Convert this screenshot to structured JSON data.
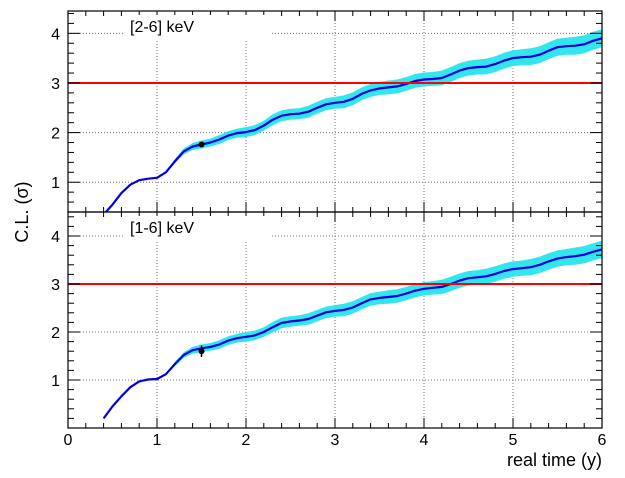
{
  "figure": {
    "ylabel": "C.L. (σ)",
    "xlabel": "real time (y)"
  },
  "chart_data": [
    {
      "type": "line",
      "panel": "top",
      "title": "[2-6] keV",
      "xlabel": "",
      "ylabel": "",
      "xlim": [
        0,
        6
      ],
      "ylim": [
        0.4,
        4.45
      ],
      "yticks": [
        1,
        2,
        3,
        4
      ],
      "ytick_labels": [
        "1",
        "2",
        "3",
        "4"
      ],
      "grid": true,
      "colors": {
        "line": "#0000dd",
        "band": "#33e6ee",
        "threshold": "#ff0000",
        "point": "#000000"
      },
      "series": [
        {
          "kind": "curve_with_band",
          "x": [
            0.4,
            0.5,
            0.6,
            0.7,
            0.8,
            0.9,
            1.0,
            1.1,
            1.2,
            1.3,
            1.4,
            1.5,
            1.6,
            1.7,
            1.8,
            1.9,
            2.0,
            2.1,
            2.2,
            2.3,
            2.4,
            2.5,
            2.6,
            2.7,
            2.8,
            2.9,
            3.0,
            3.1,
            3.2,
            3.3,
            3.4,
            3.5,
            3.6,
            3.7,
            3.8,
            3.9,
            4.0,
            4.1,
            4.2,
            4.3,
            4.4,
            4.5,
            4.6,
            4.7,
            4.8,
            4.9,
            5.0,
            5.1,
            5.2,
            5.3,
            5.4,
            5.5,
            5.6,
            5.7,
            5.8,
            5.9,
            6.0
          ],
          "y": [
            0.35,
            0.55,
            0.78,
            0.95,
            1.04,
            1.07,
            1.09,
            1.2,
            1.42,
            1.62,
            1.72,
            1.76,
            1.8,
            1.86,
            1.94,
            1.99,
            2.01,
            2.05,
            2.14,
            2.26,
            2.34,
            2.37,
            2.38,
            2.42,
            2.5,
            2.57,
            2.6,
            2.62,
            2.68,
            2.78,
            2.85,
            2.89,
            2.91,
            2.93,
            2.98,
            3.04,
            3.07,
            3.08,
            3.1,
            3.17,
            3.25,
            3.3,
            3.32,
            3.33,
            3.38,
            3.45,
            3.5,
            3.52,
            3.53,
            3.57,
            3.65,
            3.72,
            3.74,
            3.75,
            3.78,
            3.85,
            3.9
          ],
          "band_halfwidth": [
            0,
            0,
            0,
            0,
            0,
            0,
            0.01,
            0.02,
            0.04,
            0.06,
            0.07,
            0.08,
            0.08,
            0.09,
            0.09,
            0.09,
            0.1,
            0.1,
            0.1,
            0.11,
            0.11,
            0.11,
            0.11,
            0.12,
            0.12,
            0.12,
            0.12,
            0.13,
            0.13,
            0.13,
            0.13,
            0.13,
            0.14,
            0.14,
            0.14,
            0.14,
            0.14,
            0.14,
            0.15,
            0.15,
            0.15,
            0.15,
            0.15,
            0.16,
            0.16,
            0.16,
            0.16,
            0.16,
            0.17,
            0.17,
            0.17,
            0.17,
            0.17,
            0.18,
            0.18,
            0.18,
            0.18
          ]
        },
        {
          "kind": "threshold",
          "y": 3
        },
        {
          "kind": "point",
          "x": 1.5,
          "y": 1.76,
          "yerr": 0.03
        }
      ]
    },
    {
      "type": "line",
      "panel": "bottom",
      "title": "[1-6] keV",
      "xlabel": "real time (y)",
      "ylabel": "",
      "xlim": [
        0,
        6
      ],
      "ylim": [
        0.0,
        4.5
      ],
      "xticks": [
        0,
        1,
        2,
        3,
        4,
        5,
        6
      ],
      "xtick_labels": [
        "0",
        "1",
        "2",
        "3",
        "4",
        "5",
        "6"
      ],
      "yticks": [
        1,
        2,
        3,
        4
      ],
      "ytick_labels": [
        "1",
        "2",
        "3",
        "4"
      ],
      "grid": true,
      "colors": {
        "line": "#0000dd",
        "band": "#33e6ee",
        "threshold": "#ff0000",
        "point": "#000000"
      },
      "series": [
        {
          "kind": "curve_with_band",
          "x": [
            0.4,
            0.5,
            0.6,
            0.7,
            0.8,
            0.9,
            1.0,
            1.1,
            1.2,
            1.3,
            1.4,
            1.5,
            1.6,
            1.7,
            1.8,
            1.9,
            2.0,
            2.1,
            2.2,
            2.3,
            2.4,
            2.5,
            2.6,
            2.7,
            2.8,
            2.9,
            3.0,
            3.1,
            3.2,
            3.3,
            3.4,
            3.5,
            3.6,
            3.7,
            3.8,
            3.9,
            4.0,
            4.1,
            4.2,
            4.3,
            4.4,
            4.5,
            4.6,
            4.7,
            4.8,
            4.9,
            5.0,
            5.1,
            5.2,
            5.3,
            5.4,
            5.5,
            5.6,
            5.7,
            5.8,
            5.9,
            6.0
          ],
          "y": [
            0.2,
            0.45,
            0.66,
            0.85,
            0.97,
            1.01,
            1.02,
            1.12,
            1.33,
            1.52,
            1.62,
            1.66,
            1.69,
            1.74,
            1.82,
            1.87,
            1.9,
            1.93,
            2.0,
            2.1,
            2.19,
            2.22,
            2.24,
            2.27,
            2.34,
            2.41,
            2.44,
            2.46,
            2.51,
            2.6,
            2.68,
            2.71,
            2.73,
            2.75,
            2.8,
            2.86,
            2.9,
            2.92,
            2.94,
            3.0,
            3.07,
            3.12,
            3.14,
            3.16,
            3.21,
            3.27,
            3.31,
            3.33,
            3.35,
            3.4,
            3.47,
            3.53,
            3.56,
            3.58,
            3.61,
            3.67,
            3.72
          ],
          "band_halfwidth": [
            0,
            0,
            0,
            0,
            0,
            0,
            0.01,
            0.02,
            0.04,
            0.06,
            0.07,
            0.08,
            0.08,
            0.09,
            0.09,
            0.09,
            0.1,
            0.1,
            0.1,
            0.11,
            0.11,
            0.11,
            0.11,
            0.12,
            0.12,
            0.12,
            0.12,
            0.13,
            0.13,
            0.13,
            0.13,
            0.13,
            0.14,
            0.14,
            0.14,
            0.14,
            0.14,
            0.14,
            0.15,
            0.15,
            0.15,
            0.15,
            0.15,
            0.16,
            0.16,
            0.16,
            0.16,
            0.16,
            0.17,
            0.17,
            0.17,
            0.17,
            0.17,
            0.18,
            0.18,
            0.18,
            0.18
          ]
        },
        {
          "kind": "threshold",
          "y": 3
        },
        {
          "kind": "point",
          "x": 1.5,
          "y": 1.6,
          "yerr": 0.12
        }
      ]
    }
  ]
}
